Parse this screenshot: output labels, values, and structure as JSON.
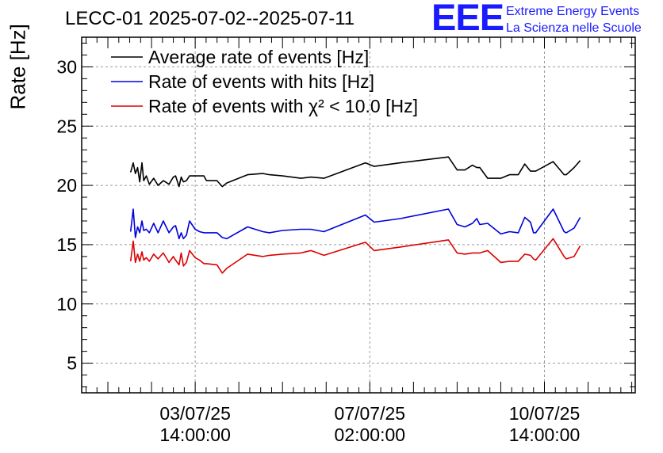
{
  "header": {
    "title": "LECC-01 2025-07-02--2025-07-11",
    "logo_text": "EEE",
    "logo_line1": "Extreme Energy Events",
    "logo_line2": "La Scienza nelle Scuole",
    "brand_color": "#1a1aff"
  },
  "chart_data": {
    "type": "line",
    "title": "LECC-01 2025-07-02--2025-07-11",
    "xlabel": "",
    "ylabel": "Rate [Hz]",
    "ylim": [
      2.5,
      32.5
    ],
    "yticks": [
      5,
      10,
      15,
      20,
      25,
      30
    ],
    "xtick_labels": [
      {
        "x": 1.0,
        "line1": "03/07/25",
        "line2": "14:00:00"
      },
      {
        "x": 5.0,
        "line1": "07/07/25",
        "line2": "02:00:00"
      },
      {
        "x": 9.0,
        "line1": "10/07/25",
        "line2": "14:00:00"
      }
    ],
    "x_unit_note": "",
    "xlim": [
      -1.6,
      11.08
    ],
    "grid": true,
    "legend_position": "top-left",
    "series": [
      {
        "name": "Average rate of events [Hz]",
        "color": "#000000",
        "x": [
          -0.48,
          -0.42,
          -0.37,
          -0.32,
          -0.27,
          -0.22,
          -0.18,
          -0.12,
          -0.05,
          0.05,
          0.15,
          0.27,
          0.4,
          0.5,
          0.55,
          0.63,
          0.68,
          0.73,
          0.8,
          0.87,
          1.0,
          1.1,
          1.2,
          1.26,
          1.5,
          1.62,
          1.72,
          2.2,
          2.55,
          2.7,
          3.0,
          3.42,
          3.65,
          3.95,
          4.9,
          5.1,
          5.7,
          6.8,
          7.0,
          7.18,
          7.35,
          7.45,
          7.52,
          7.7,
          8.0,
          8.2,
          8.4,
          8.55,
          8.68,
          8.75,
          8.8,
          9.2,
          9.45,
          9.5,
          9.68,
          9.82
        ],
        "y": [
          21.1,
          21.9,
          21.0,
          21.5,
          20.3,
          21.9,
          20.4,
          20.8,
          20.1,
          20.6,
          20.0,
          20.4,
          20.1,
          20.7,
          20.8,
          19.9,
          20.7,
          20.3,
          20.4,
          20.8,
          20.8,
          20.8,
          20.8,
          20.4,
          20.4,
          19.9,
          20.2,
          20.9,
          21.0,
          20.9,
          20.8,
          20.6,
          20.7,
          20.6,
          21.9,
          21.6,
          21.9,
          22.4,
          21.3,
          21.3,
          21.7,
          21.5,
          21.5,
          20.6,
          20.6,
          20.9,
          20.9,
          21.8,
          21.2,
          21.2,
          21.2,
          22.0,
          20.9,
          20.9,
          21.5,
          22.1
        ]
      },
      {
        "name": "Rate of events with hits [Hz]",
        "color": "#0000dd",
        "x": [
          -0.48,
          -0.42,
          -0.37,
          -0.32,
          -0.27,
          -0.22,
          -0.18,
          -0.12,
          -0.05,
          0.05,
          0.15,
          0.27,
          0.4,
          0.5,
          0.55,
          0.63,
          0.68,
          0.73,
          0.8,
          0.87,
          1.0,
          1.1,
          1.2,
          1.26,
          1.5,
          1.62,
          1.72,
          2.2,
          2.55,
          2.7,
          3.0,
          3.42,
          3.65,
          3.95,
          4.9,
          5.1,
          5.7,
          6.8,
          7.0,
          7.18,
          7.35,
          7.45,
          7.52,
          7.7,
          8.0,
          8.2,
          8.4,
          8.55,
          8.68,
          8.75,
          8.8,
          9.2,
          9.45,
          9.5,
          9.68,
          9.82
        ],
        "y": [
          16.1,
          18.0,
          15.6,
          16.5,
          16.0,
          17.0,
          16.2,
          16.3,
          16.0,
          16.8,
          16.0,
          17.0,
          16.0,
          16.5,
          16.6,
          15.5,
          16.0,
          15.5,
          15.8,
          17.0,
          16.3,
          16.1,
          16.0,
          16.0,
          16.0,
          15.6,
          15.5,
          16.5,
          16.1,
          16.0,
          16.2,
          16.3,
          16.3,
          16.1,
          17.5,
          16.9,
          17.2,
          18.0,
          16.7,
          16.5,
          16.8,
          17.2,
          16.7,
          16.8,
          15.9,
          16.1,
          16.0,
          17.3,
          16.9,
          16.0,
          16.0,
          18.0,
          16.1,
          16.0,
          16.4,
          17.3
        ]
      },
      {
        "name": "Rate of events with χ² < 10.0 [Hz]",
        "color": "#dd0000",
        "x": [
          -0.48,
          -0.42,
          -0.37,
          -0.32,
          -0.27,
          -0.22,
          -0.18,
          -0.12,
          -0.05,
          0.05,
          0.15,
          0.27,
          0.4,
          0.5,
          0.55,
          0.63,
          0.68,
          0.73,
          0.8,
          0.87,
          1.0,
          1.1,
          1.2,
          1.26,
          1.5,
          1.62,
          1.72,
          2.2,
          2.55,
          2.7,
          3.0,
          3.42,
          3.65,
          3.95,
          4.9,
          5.1,
          5.7,
          6.8,
          7.0,
          7.18,
          7.35,
          7.45,
          7.52,
          7.7,
          8.0,
          8.2,
          8.4,
          8.55,
          8.68,
          8.75,
          8.8,
          9.2,
          9.45,
          9.5,
          9.68,
          9.82
        ],
        "y": [
          13.6,
          15.3,
          13.5,
          14.2,
          13.6,
          14.4,
          13.7,
          13.9,
          13.6,
          14.2,
          13.8,
          14.3,
          13.5,
          14.0,
          13.7,
          13.3,
          14.3,
          13.2,
          13.5,
          14.5,
          13.9,
          13.7,
          13.4,
          13.4,
          13.3,
          12.6,
          13.0,
          14.2,
          14.0,
          14.1,
          14.2,
          14.3,
          14.5,
          14.1,
          15.2,
          14.5,
          14.8,
          15.4,
          14.3,
          14.2,
          14.3,
          14.3,
          14.3,
          14.5,
          13.5,
          13.6,
          13.6,
          14.2,
          14.1,
          13.8,
          13.7,
          15.5,
          14.0,
          13.8,
          14.0,
          14.9
        ]
      }
    ]
  }
}
